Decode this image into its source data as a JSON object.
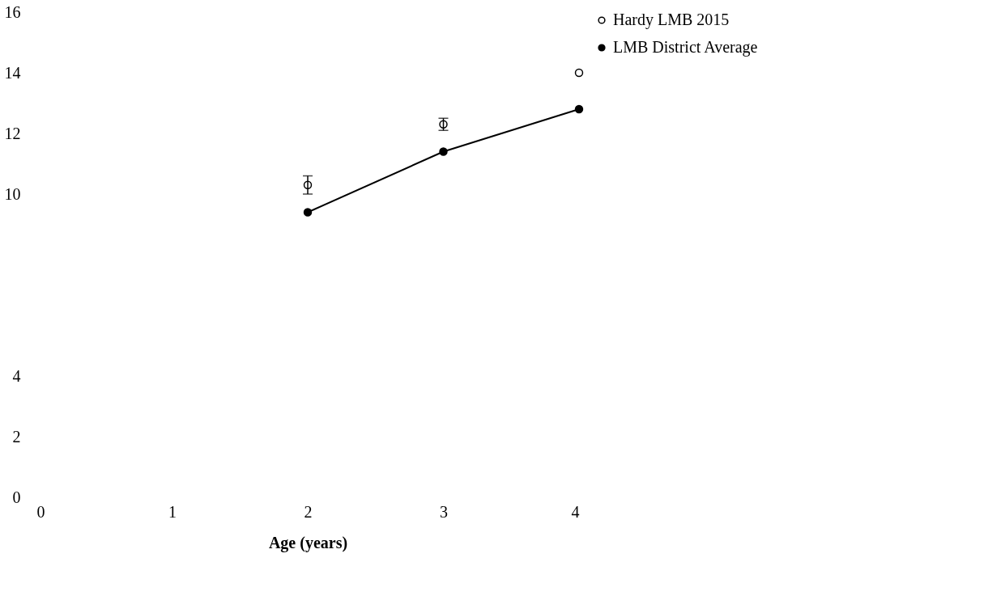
{
  "chart_data": {
    "type": "line",
    "xlabel": "Age (years)",
    "xlim": [
      0,
      4
    ],
    "xticks": [
      0,
      1,
      2,
      3,
      4
    ],
    "ylim": [
      0,
      16
    ],
    "yticks": [
      0,
      2,
      4,
      10,
      12,
      14,
      16
    ],
    "series": [
      {
        "name": "Hardy LMB 2015",
        "type": "scatter",
        "color": "#000000",
        "x": [
          2,
          3,
          4
        ],
        "values": [
          10.3,
          12.3,
          14.0
        ],
        "errors": [
          0.3,
          0.2,
          null
        ]
      },
      {
        "name": "LMB District Average",
        "color": "#000000",
        "x": [
          2,
          3,
          4
        ],
        "values": [
          9.4,
          11.4,
          12.8
        ]
      }
    ],
    "marker": "circle",
    "grid": false,
    "legend": "right"
  }
}
